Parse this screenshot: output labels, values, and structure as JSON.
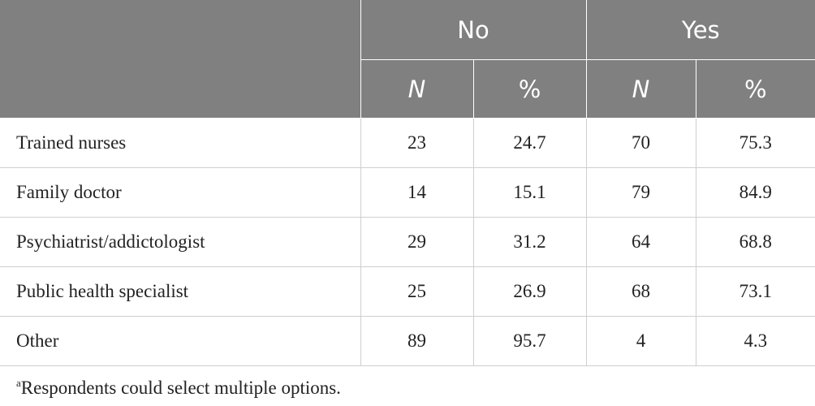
{
  "table": {
    "group_headers": [
      "No",
      "Yes"
    ],
    "sub_headers": [
      "N",
      "%",
      "N",
      "%"
    ],
    "rows": [
      [
        "Trained nurses",
        23,
        24.7,
        70,
        75.3
      ],
      [
        "Family doctor",
        14,
        15.1,
        79,
        84.9
      ],
      [
        "Psychiatrist/addictologist",
        29,
        31.2,
        64,
        68.8
      ],
      [
        "Public health specialist",
        25,
        26.9,
        68,
        73.1
      ],
      [
        "Other",
        89,
        95.7,
        4,
        4.3
      ]
    ]
  },
  "footnote": {
    "marker": "a",
    "text": "Respondents could select multiple options."
  }
}
